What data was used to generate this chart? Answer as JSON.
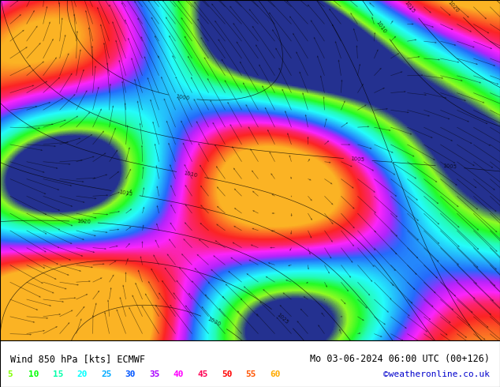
{
  "title_left": "Wind 850 hPa [kts] ECMWF",
  "title_right": "Mo 03-06-2024 06:00 UTC (00+126)",
  "credit": "©weatheronline.co.uk",
  "legend_values": [
    5,
    10,
    15,
    20,
    25,
    30,
    35,
    40,
    45,
    50,
    55,
    60
  ],
  "legend_colors": [
    "#80ff00",
    "#00ff00",
    "#00ffaa",
    "#00ffff",
    "#00aaff",
    "#0055ff",
    "#aa00ff",
    "#ff00ff",
    "#ff0055",
    "#ff0000",
    "#ff5500",
    "#ffaa00"
  ],
  "background_color": "#ffffff",
  "map_bg": "#e8e8e8",
  "bottom_bar_height": 0.12,
  "font_color_left": "#000000",
  "font_color_right": "#000000",
  "credit_color": "#0000cc",
  "fig_width": 6.34,
  "fig_height": 4.9,
  "dpi": 100
}
